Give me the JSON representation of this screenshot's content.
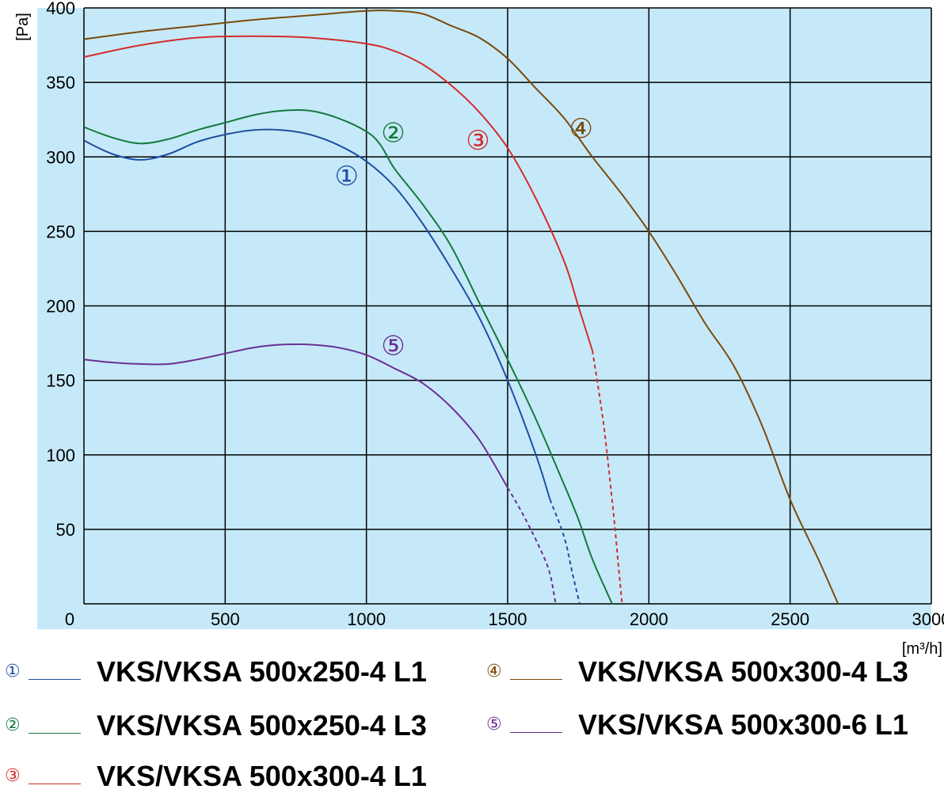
{
  "chart_data": {
    "type": "line",
    "xlabel": "[m³/h]",
    "ylabel": "[Pa]",
    "xlim": [
      0,
      3000
    ],
    "ylim": [
      0,
      400
    ],
    "x_ticks": [
      "0",
      "500",
      "1000",
      "1500",
      "2000",
      "2500",
      "3000"
    ],
    "y_ticks": [
      "50",
      "100",
      "150",
      "200",
      "250",
      "300",
      "350",
      "400"
    ],
    "grid": true,
    "background": "#c6e9f9",
    "legend_position": "bottom",
    "series": [
      {
        "marker": "①",
        "name": "VKS/VKSA 500x250-4 L1",
        "color": "#1f4fa3",
        "points": [
          [
            0,
            311
          ],
          [
            100,
            302
          ],
          [
            200,
            298
          ],
          [
            300,
            302
          ],
          [
            400,
            310
          ],
          [
            500,
            315
          ],
          [
            600,
            318
          ],
          [
            700,
            318
          ],
          [
            800,
            315
          ],
          [
            900,
            308
          ],
          [
            1000,
            297
          ],
          [
            1100,
            280
          ],
          [
            1200,
            255
          ],
          [
            1300,
            225
          ],
          [
            1400,
            192
          ],
          [
            1500,
            150
          ],
          [
            1600,
            100
          ],
          [
            1650,
            70
          ]
        ],
        "dashed_points": [
          [
            1650,
            70
          ],
          [
            1700,
            45
          ],
          [
            1730,
            20
          ],
          [
            1755,
            0
          ]
        ],
        "tag_position": [
          930,
          286
        ]
      },
      {
        "marker": "②",
        "name": "VKS/VKSA 500x250-4 L3",
        "color": "#137a3a",
        "points": [
          [
            0,
            320
          ],
          [
            100,
            313
          ],
          [
            200,
            309
          ],
          [
            300,
            312
          ],
          [
            400,
            318
          ],
          [
            500,
            323
          ],
          [
            600,
            328
          ],
          [
            700,
            331
          ],
          [
            800,
            331
          ],
          [
            900,
            326
          ],
          [
            1000,
            317
          ],
          [
            1050,
            308
          ],
          [
            1100,
            292
          ],
          [
            1200,
            268
          ],
          [
            1300,
            240
          ],
          [
            1400,
            202
          ],
          [
            1500,
            164
          ],
          [
            1600,
            124
          ],
          [
            1700,
            80
          ],
          [
            1750,
            57
          ],
          [
            1800,
            30
          ],
          [
            1870,
            0
          ]
        ],
        "dashed_points": [],
        "tag_position": [
          1095,
          315
        ]
      },
      {
        "marker": "③",
        "name": "VKS/VKSA 500x300-4 L1",
        "color": "#d42b2b",
        "points": [
          [
            0,
            367
          ],
          [
            200,
            375
          ],
          [
            400,
            380
          ],
          [
            600,
            381
          ],
          [
            800,
            380
          ],
          [
            1000,
            376
          ],
          [
            1100,
            371
          ],
          [
            1200,
            362
          ],
          [
            1300,
            348
          ],
          [
            1400,
            330
          ],
          [
            1500,
            306
          ],
          [
            1600,
            272
          ],
          [
            1700,
            230
          ],
          [
            1750,
            200
          ],
          [
            1800,
            170
          ]
        ],
        "dashed_points": [
          [
            1800,
            170
          ],
          [
            1840,
            120
          ],
          [
            1875,
            60
          ],
          [
            1895,
            20
          ],
          [
            1905,
            0
          ]
        ],
        "tag_position": [
          1395,
          310
        ]
      },
      {
        "marker": "④",
        "name": "VKS/VKSA 500x300-4 L3",
        "color": "#7a4a0c",
        "points": [
          [
            0,
            379
          ],
          [
            200,
            384
          ],
          [
            400,
            388
          ],
          [
            600,
            392
          ],
          [
            800,
            395
          ],
          [
            1000,
            398
          ],
          [
            1100,
            398
          ],
          [
            1200,
            396
          ],
          [
            1300,
            388
          ],
          [
            1400,
            380
          ],
          [
            1500,
            366
          ],
          [
            1600,
            346
          ],
          [
            1700,
            326
          ],
          [
            1800,
            300
          ],
          [
            1900,
            276
          ],
          [
            2000,
            250
          ],
          [
            2100,
            220
          ],
          [
            2200,
            188
          ],
          [
            2300,
            160
          ],
          [
            2400,
            120
          ],
          [
            2500,
            70
          ],
          [
            2600,
            30
          ],
          [
            2670,
            0
          ]
        ],
        "dashed_points": [],
        "tag_position": [
          1760,
          318
        ]
      },
      {
        "marker": "⑤",
        "name": "VKS/VKSA 500x300-6 L1",
        "color": "#6b2f93",
        "points": [
          [
            0,
            164
          ],
          [
            100,
            162
          ],
          [
            200,
            161
          ],
          [
            300,
            161
          ],
          [
            400,
            164
          ],
          [
            500,
            168
          ],
          [
            600,
            172
          ],
          [
            700,
            174
          ],
          [
            800,
            174
          ],
          [
            900,
            172
          ],
          [
            1000,
            167
          ],
          [
            1100,
            158
          ],
          [
            1200,
            148
          ],
          [
            1300,
            132
          ],
          [
            1400,
            110
          ],
          [
            1500,
            78
          ]
        ],
        "dashed_points": [
          [
            1500,
            78
          ],
          [
            1560,
            58
          ],
          [
            1620,
            35
          ],
          [
            1650,
            20
          ],
          [
            1670,
            0
          ]
        ],
        "tag_position": [
          1095,
          172
        ]
      }
    ]
  }
}
